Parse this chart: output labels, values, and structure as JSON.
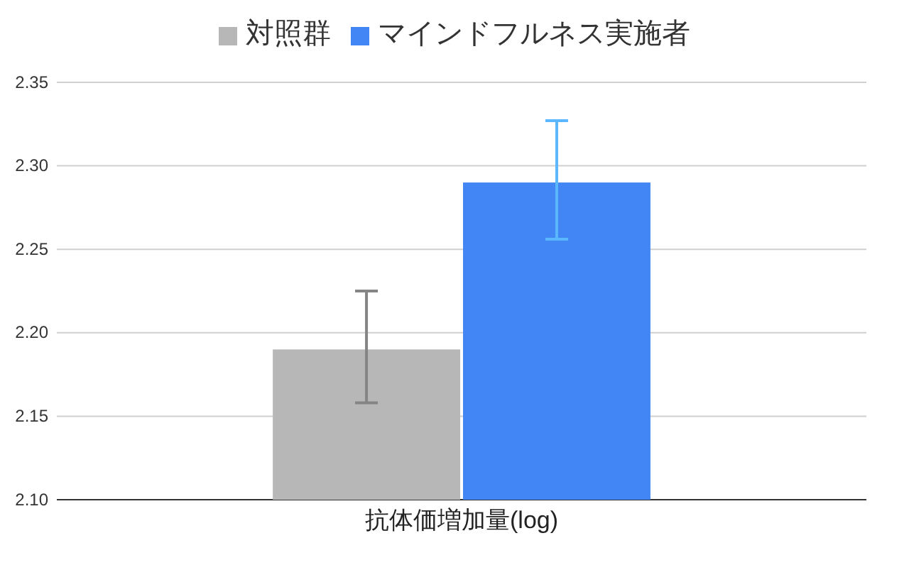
{
  "chart_data": {
    "type": "bar",
    "xlabel": null,
    "categories": [
      "抗体価増加量(log)"
    ],
    "series": [
      {
        "name": "対照群",
        "color": "#b7b7b7",
        "values": [
          2.19
        ],
        "errors": [
          [
            2.158,
            2.225
          ]
        ]
      },
      {
        "name": "マインドフルネス実施者",
        "color": "#4285f4",
        "values": [
          2.29
        ],
        "errors": [
          [
            2.256,
            2.327
          ]
        ]
      }
    ],
    "ylim": [
      2.1,
      2.35
    ],
    "yticks": [
      {
        "value": 2.1,
        "label": "2.10"
      },
      {
        "value": 2.15,
        "label": "2.15"
      },
      {
        "value": 2.2,
        "label": "2.20"
      },
      {
        "value": 2.25,
        "label": "2.25"
      },
      {
        "value": 2.3,
        "label": "2.30"
      },
      {
        "value": 2.35,
        "label": "2.35"
      }
    ],
    "grid": true,
    "legend": "top"
  }
}
